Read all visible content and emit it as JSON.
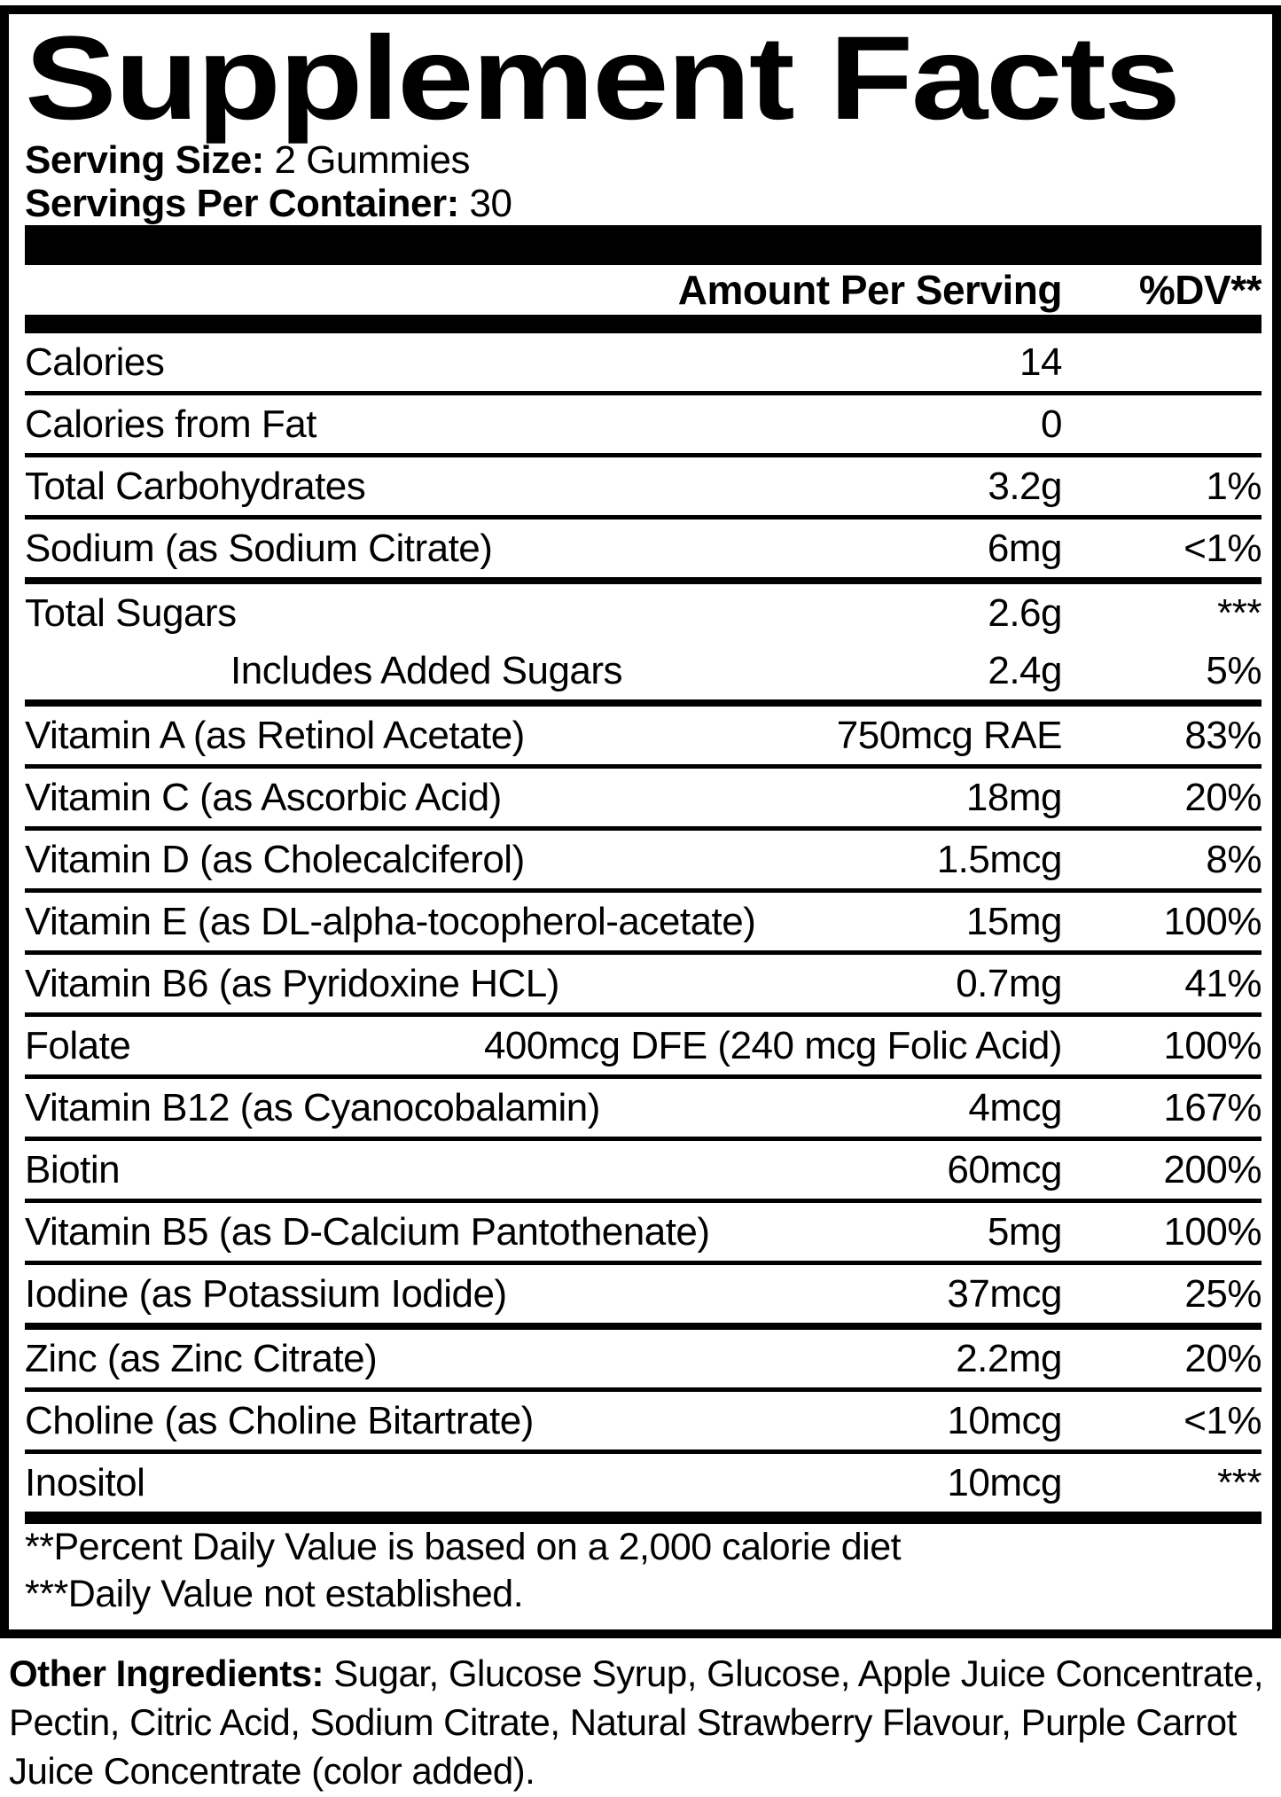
{
  "title": "Supplement Facts",
  "serving": {
    "size_label": "Serving Size:",
    "size_value": "2 Gummies",
    "container_label": "Servings Per Container:",
    "container_value": "30"
  },
  "table": {
    "amount_header": "Amount Per Serving",
    "dv_header": "%DV**",
    "rows": [
      {
        "name": "Calories",
        "amount": "14",
        "dv": "",
        "indent": false,
        "sep": "thin"
      },
      {
        "name": "Calories from Fat",
        "amount": "0",
        "dv": "",
        "indent": false,
        "sep": "thin"
      },
      {
        "name": "Total Carbohydrates",
        "amount": "3.2g",
        "dv": "1%",
        "indent": false,
        "sep": "thin"
      },
      {
        "name": "Sodium (as Sodium Citrate)",
        "amount": "6mg",
        "dv": "<1%",
        "indent": false,
        "sep": "thick"
      },
      {
        "name": "Total Sugars",
        "amount": "2.6g",
        "dv": "***",
        "indent": false,
        "sep": "none"
      },
      {
        "name": "Includes Added Sugars",
        "amount": "2.4g",
        "dv": "5%",
        "indent": true,
        "sep": "thick"
      },
      {
        "name": "Vitamin A (as Retinol Acetate)",
        "amount": "750mcg RAE",
        "dv": "83%",
        "indent": false,
        "sep": "thin"
      },
      {
        "name": "Vitamin C (as Ascorbic Acid)",
        "amount": "18mg",
        "dv": "20%",
        "indent": false,
        "sep": "thin"
      },
      {
        "name": "Vitamin D (as Cholecalciferol)",
        "amount": "1.5mcg",
        "dv": "8%",
        "indent": false,
        "sep": "thin"
      },
      {
        "name": "Vitamin E (as DL-alpha-tocopherol-acetate)",
        "amount": "15mg",
        "dv": "100%",
        "indent": false,
        "sep": "thin"
      },
      {
        "name": "Vitamin B6 (as Pyridoxine HCL)",
        "amount": "0.7mg",
        "dv": "41%",
        "indent": false,
        "sep": "thin"
      },
      {
        "name": "Folate",
        "amount": "400mcg DFE (240 mcg Folic Acid)",
        "dv": "100%",
        "indent": false,
        "sep": "thin"
      },
      {
        "name": "Vitamin B12 (as Cyanocobalamin)",
        "amount": "4mcg",
        "dv": "167%",
        "indent": false,
        "sep": "thin"
      },
      {
        "name": "Biotin",
        "amount": "60mcg",
        "dv": "200%",
        "indent": false,
        "sep": "thin"
      },
      {
        "name": "Vitamin B5 (as D-Calcium Pantothenate)",
        "amount": "5mg",
        "dv": "100%",
        "indent": false,
        "sep": "thin"
      },
      {
        "name": "Iodine (as Potassium Iodide)",
        "amount": "37mcg",
        "dv": "25%",
        "indent": false,
        "sep": "thick"
      },
      {
        "name": "Zinc (as Zinc Citrate)",
        "amount": "2.2mg",
        "dv": "20%",
        "indent": false,
        "sep": "thin"
      },
      {
        "name": "Choline (as Choline Bitartrate)",
        "amount": "10mcg",
        "dv": "<1%",
        "indent": false,
        "sep": "thin"
      },
      {
        "name": "Inositol",
        "amount": "10mcg",
        "dv": "***",
        "indent": false,
        "sep": "none"
      }
    ]
  },
  "footnotes": [
    "**Percent Daily Value is based on a 2,000 calorie diet",
    "***Daily Value not established."
  ],
  "other_ingredients": {
    "label": "Other Ingredients:",
    "text": "Sugar, Glucose Syrup, Glucose, Apple Juice Concentrate, Pectin, Citric Acid, Sodium Citrate, Natural Strawberry Flavour, Purple Carrot Juice Concentrate (color added)."
  },
  "colors": {
    "ink": "#000000",
    "paper": "#ffffff"
  }
}
